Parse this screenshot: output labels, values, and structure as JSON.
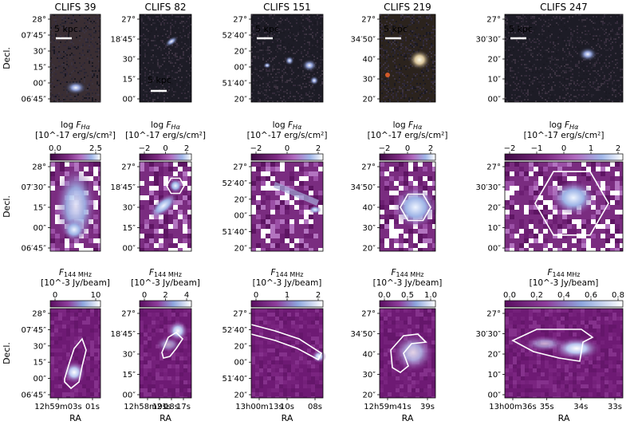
{
  "figure": {
    "dec_axis_label": "Decl.",
    "ra_axis_label": "RA",
    "scalebar_label": "5 kpc",
    "colors": {
      "halpha_low": "#4b0a4a",
      "halpha_mid": "#a04aa3",
      "halpha_high": "#e9f1ff",
      "radio_low": "#6a1a70",
      "contour": "#ffffff"
    },
    "halpha_cbar_title": "log F_Hα",
    "halpha_cbar_unit": "[10^-17 erg/s/cm²]",
    "radio_cbar_title": "F_144 MHz",
    "radio_cbar_unit": "[10^-3 Jy/beam]",
    "columns": [
      {
        "title": "CLIFS 39",
        "optical_dec_ticks": [
          "28°",
          "07′45″",
          "30″",
          "15″",
          "00″",
          "06′45″"
        ],
        "halpha_cbar_ticks": [
          "0.0",
          "2.5"
        ],
        "halpha_dec_ticks": [
          "28°",
          "07′30″",
          "15″",
          "00″",
          "06′45″"
        ],
        "radio_cbar_ticks": [
          "0",
          "10"
        ],
        "radio_dec_ticks": [
          "28°",
          "07′45″",
          "30″",
          "15″",
          "00″",
          "06′45″"
        ],
        "ra_ticks": [
          "12h59m03s",
          "01s"
        ]
      },
      {
        "title": "CLIFS 82",
        "optical_dec_ticks": [
          "27°",
          "18′45″",
          "30″",
          "15″",
          "00″"
        ],
        "halpha_cbar_ticks": [
          "−2",
          "0",
          "2"
        ],
        "halpha_dec_ticks": [
          "27°",
          "18′45″",
          "30″",
          "15″",
          "00″"
        ],
        "radio_cbar_ticks": [
          "0",
          "2",
          "4"
        ],
        "radio_dec_ticks": [
          "27°",
          "18′45″",
          "30″",
          "15″",
          "00″"
        ],
        "ra_ticks": [
          "12h58m21s",
          "19s",
          "18s",
          "17s"
        ]
      },
      {
        "title": "CLIFS 151",
        "optical_dec_ticks": [
          "27°",
          "52′40″",
          "20″",
          "00″",
          "51′40″",
          "20″"
        ],
        "halpha_cbar_ticks": [
          "−2",
          "0",
          "2"
        ],
        "halpha_dec_ticks": [
          "27°",
          "52′40″",
          "20″",
          "00″",
          "51′40″",
          "20″"
        ],
        "radio_cbar_ticks": [
          "0",
          "1",
          "2"
        ],
        "radio_dec_ticks": [
          "27°",
          "52′40″",
          "20″",
          "00″",
          "51′40″",
          "20″"
        ],
        "ra_ticks": [
          "13h00m13s",
          "10s",
          "08s"
        ]
      },
      {
        "title": "CLIFS 219",
        "optical_dec_ticks": [
          "27°",
          "34′50″",
          "40″",
          "30″",
          "20″"
        ],
        "halpha_cbar_ticks": [
          "−2",
          "0",
          "2"
        ],
        "halpha_dec_ticks": [
          "27°",
          "34′50″",
          "40″",
          "30″",
          "20″"
        ],
        "radio_cbar_ticks": [
          "0.0",
          "0.5",
          "1.0"
        ],
        "radio_dec_ticks": [
          "27°",
          "34′50″",
          "40″",
          "30″",
          "20″"
        ],
        "ra_ticks": [
          "12h59m41s",
          "39s"
        ]
      },
      {
        "title": "CLIFS 247",
        "optical_dec_ticks": [
          "27°",
          "30′30″",
          "20″",
          "10″",
          "00″"
        ],
        "halpha_cbar_ticks": [
          "−2",
          "−1",
          "0",
          "1",
          "2"
        ],
        "halpha_dec_ticks": [
          "27°",
          "30′30″",
          "20″",
          "10″",
          "00″"
        ],
        "radio_cbar_ticks": [
          "0.0",
          "0.2",
          "0.4",
          "0.6",
          "0.8"
        ],
        "radio_dec_ticks": [
          "27°",
          "30′30″",
          "20″",
          "10″",
          "00″"
        ],
        "ra_ticks": [
          "13h00m36s",
          "35s",
          "34s",
          "33s"
        ]
      }
    ]
  }
}
